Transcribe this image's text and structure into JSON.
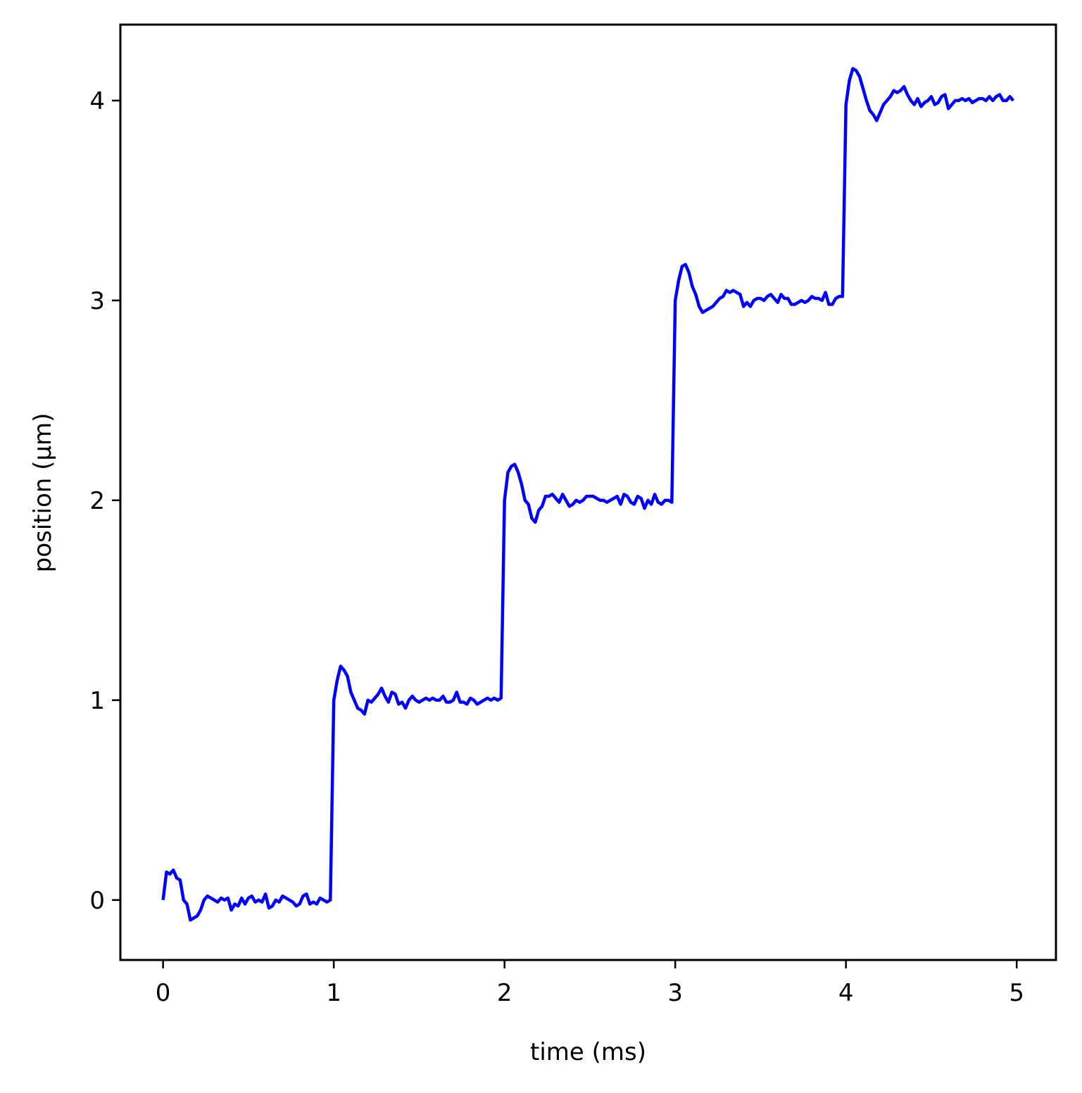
{
  "chart_data": {
    "type": "line",
    "title": "",
    "xlabel": "time (ms)",
    "ylabel": "position (μm)",
    "xlim": [
      -0.25,
      5.23
    ],
    "ylim": [
      -0.3,
      4.38
    ],
    "xticks": [
      0,
      1,
      2,
      3,
      4,
      5
    ],
    "xtick_labels": [
      "0",
      "1",
      "2",
      "3",
      "4",
      "5"
    ],
    "yticks": [
      0,
      1,
      2,
      3,
      4
    ],
    "ytick_labels": [
      "0",
      "1",
      "2",
      "3",
      "4"
    ],
    "grid": false,
    "legend": "none",
    "series": [
      {
        "color": "#0000ff",
        "x": [
          0.0,
          0.02,
          0.04,
          0.06,
          0.08,
          0.1,
          0.12,
          0.14,
          0.16,
          0.18,
          0.2,
          0.22,
          0.24,
          0.26,
          0.28,
          0.3,
          0.32,
          0.34,
          0.36,
          0.38,
          0.4,
          0.42,
          0.44,
          0.46,
          0.48,
          0.5,
          0.52,
          0.54,
          0.56,
          0.58,
          0.6,
          0.62,
          0.64,
          0.66,
          0.68,
          0.7,
          0.72,
          0.74,
          0.76,
          0.78,
          0.8,
          0.82,
          0.84,
          0.86,
          0.88,
          0.9,
          0.92,
          0.94,
          0.96,
          0.98,
          1.0,
          1.02,
          1.04,
          1.06,
          1.08,
          1.1,
          1.12,
          1.14,
          1.16,
          1.18,
          1.2,
          1.22,
          1.24,
          1.26,
          1.28,
          1.3,
          1.32,
          1.34,
          1.36,
          1.38,
          1.4,
          1.42,
          1.44,
          1.46,
          1.48,
          1.5,
          1.52,
          1.54,
          1.56,
          1.58,
          1.6,
          1.62,
          1.64,
          1.66,
          1.68,
          1.7,
          1.72,
          1.74,
          1.76,
          1.78,
          1.8,
          1.82,
          1.84,
          1.86,
          1.88,
          1.9,
          1.92,
          1.94,
          1.96,
          1.98,
          2.0,
          2.02,
          2.04,
          2.06,
          2.08,
          2.1,
          2.12,
          2.14,
          2.16,
          2.18,
          2.2,
          2.22,
          2.24,
          2.26,
          2.28,
          2.3,
          2.32,
          2.34,
          2.36,
          2.38,
          2.4,
          2.42,
          2.44,
          2.46,
          2.48,
          2.5,
          2.52,
          2.54,
          2.56,
          2.58,
          2.6,
          2.62,
          2.64,
          2.66,
          2.68,
          2.7,
          2.72,
          2.74,
          2.76,
          2.78,
          2.8,
          2.82,
          2.84,
          2.86,
          2.88,
          2.9,
          2.92,
          2.94,
          2.96,
          2.98,
          3.0,
          3.02,
          3.04,
          3.06,
          3.08,
          3.1,
          3.12,
          3.14,
          3.16,
          3.18,
          3.2,
          3.22,
          3.24,
          3.26,
          3.28,
          3.3,
          3.32,
          3.34,
          3.36,
          3.38,
          3.4,
          3.42,
          3.44,
          3.46,
          3.48,
          3.5,
          3.52,
          3.54,
          3.56,
          3.58,
          3.6,
          3.62,
          3.64,
          3.66,
          3.68,
          3.7,
          3.72,
          3.74,
          3.76,
          3.78,
          3.8,
          3.82,
          3.84,
          3.86,
          3.88,
          3.9,
          3.92,
          3.94,
          3.96,
          3.98,
          4.0,
          4.02,
          4.04,
          4.06,
          4.08,
          4.1,
          4.12,
          4.14,
          4.16,
          4.18,
          4.2,
          4.22,
          4.24,
          4.26,
          4.28,
          4.3,
          4.32,
          4.34,
          4.36,
          4.38,
          4.4,
          4.42,
          4.44,
          4.46,
          4.48,
          4.5,
          4.52,
          4.54,
          4.56,
          4.58,
          4.6,
          4.62,
          4.64,
          4.66,
          4.68,
          4.7,
          4.72,
          4.74,
          4.76,
          4.78,
          4.8,
          4.82,
          4.84,
          4.86,
          4.88,
          4.9,
          4.92,
          4.94,
          4.96,
          4.98
        ],
        "y": [
          0.0,
          0.14,
          0.13,
          0.15,
          0.11,
          0.1,
          0.0,
          -0.02,
          -0.1,
          -0.09,
          -0.08,
          -0.05,
          0.0,
          0.02,
          0.01,
          0.0,
          -0.01,
          0.01,
          0.0,
          0.01,
          -0.05,
          -0.02,
          -0.03,
          0.01,
          -0.02,
          0.01,
          0.02,
          -0.01,
          0.0,
          -0.01,
          0.03,
          -0.04,
          -0.03,
          0.0,
          -0.01,
          0.02,
          0.01,
          0.0,
          -0.01,
          -0.03,
          -0.02,
          0.02,
          0.03,
          -0.02,
          -0.01,
          -0.02,
          0.01,
          0.0,
          -0.01,
          0.0,
          1.0,
          1.1,
          1.17,
          1.15,
          1.12,
          1.04,
          1.0,
          0.96,
          0.95,
          0.93,
          1.0,
          0.99,
          1.01,
          1.03,
          1.06,
          1.02,
          0.99,
          1.04,
          1.03,
          0.98,
          0.99,
          0.96,
          1.0,
          1.02,
          1.0,
          0.99,
          1.0,
          1.01,
          1.0,
          1.01,
          1.0,
          1.0,
          1.02,
          0.99,
          0.99,
          1.0,
          1.04,
          0.99,
          0.99,
          0.98,
          1.01,
          1.0,
          0.98,
          0.99,
          1.0,
          1.01,
          1.0,
          1.01,
          1.0,
          1.01,
          2.0,
          2.14,
          2.17,
          2.18,
          2.14,
          2.08,
          2.0,
          1.98,
          1.91,
          1.89,
          1.95,
          1.97,
          2.02,
          2.02,
          2.03,
          2.01,
          1.99,
          2.03,
          2.0,
          1.97,
          1.98,
          2.0,
          1.99,
          2.0,
          2.02,
          2.02,
          2.02,
          2.01,
          2.0,
          2.0,
          1.99,
          2.0,
          2.01,
          2.02,
          1.98,
          2.03,
          2.02,
          1.99,
          1.98,
          2.02,
          2.01,
          1.96,
          2.0,
          1.98,
          2.03,
          1.99,
          1.98,
          2.0,
          2.0,
          1.99,
          3.0,
          3.1,
          3.17,
          3.18,
          3.14,
          3.07,
          3.03,
          2.97,
          2.94,
          2.95,
          2.96,
          2.97,
          2.99,
          3.01,
          3.02,
          3.05,
          3.04,
          3.05,
          3.04,
          3.03,
          2.97,
          2.99,
          2.97,
          3.0,
          3.01,
          3.01,
          3.0,
          3.02,
          3.03,
          3.01,
          2.99,
          3.03,
          3.01,
          3.01,
          2.98,
          2.98,
          2.99,
          3.0,
          2.99,
          3.0,
          3.02,
          3.01,
          3.01,
          3.0,
          3.04,
          2.98,
          2.98,
          3.01,
          3.02,
          3.02,
          3.98,
          4.1,
          4.16,
          4.15,
          4.12,
          4.06,
          4.0,
          3.95,
          3.93,
          3.9,
          3.94,
          3.98,
          4.0,
          4.02,
          4.05,
          4.04,
          4.05,
          4.07,
          4.03,
          4.0,
          3.98,
          4.01,
          3.97,
          3.99,
          4.0,
          4.02,
          3.98,
          3.99,
          4.02,
          4.03,
          3.96,
          3.98,
          4.0,
          4.0,
          4.01,
          4.0,
          4.01,
          3.99,
          4.0,
          4.01,
          4.01,
          4.0,
          4.02,
          4.0,
          4.02,
          4.03,
          4.0,
          4.0,
          4.02,
          4.0
        ]
      }
    ]
  }
}
